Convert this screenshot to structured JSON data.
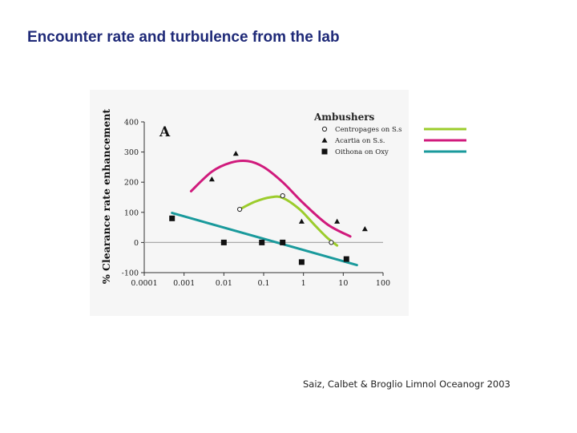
{
  "slide": {
    "title": "Encounter rate and turbulence from the lab",
    "citation": "Saiz, Calbet & Broglio Limnol Oceanogr 2003"
  },
  "chart_data": {
    "type": "scatter",
    "panel_letter": "A",
    "ylabel": "% Clearance rate enhancement",
    "xscale": "log",
    "xlim": [
      0.0001,
      100
    ],
    "ylim": [
      -100,
      400
    ],
    "x_ticks": [
      0.0001,
      0.001,
      0.01,
      0.1,
      1,
      10,
      100
    ],
    "x_tick_labels": [
      "0.0001",
      "0.001",
      "0.01",
      "0.1",
      "1",
      "10",
      "100"
    ],
    "y_ticks": [
      400,
      300,
      200,
      100,
      0,
      -100
    ],
    "y_tick_labels": [
      "400",
      "300",
      "200",
      "100",
      "0",
      "-100"
    ],
    "legend": {
      "title": "Ambushers",
      "placement": "top-right",
      "entries": [
        "Centropages on S.s",
        "Acartia on S.s.",
        "Oithona on Oxy"
      ]
    },
    "series": [
      {
        "name": "Centropages on S.s",
        "marker": "open-circle",
        "points": [
          {
            "x": 0.025,
            "y": 110
          },
          {
            "x": 0.3,
            "y": 155
          },
          {
            "x": 5,
            "y": 0
          }
        ],
        "trend_color": "#9ccc2c",
        "trend": [
          {
            "x": 0.025,
            "y": 110
          },
          {
            "x": 0.06,
            "y": 135
          },
          {
            "x": 0.15,
            "y": 150
          },
          {
            "x": 0.3,
            "y": 148
          },
          {
            "x": 0.8,
            "y": 110
          },
          {
            "x": 2,
            "y": 55
          },
          {
            "x": 4,
            "y": 15
          },
          {
            "x": 7,
            "y": -10
          }
        ]
      },
      {
        "name": "Acartia on S.s.",
        "marker": "triangle",
        "points": [
          {
            "x": 0.005,
            "y": 210
          },
          {
            "x": 0.02,
            "y": 295
          },
          {
            "x": 0.9,
            "y": 70
          },
          {
            "x": 7,
            "y": 70
          },
          {
            "x": 35,
            "y": 45
          }
        ],
        "trend_color": "#d01a7c",
        "trend": [
          {
            "x": 0.0015,
            "y": 170
          },
          {
            "x": 0.005,
            "y": 235
          },
          {
            "x": 0.015,
            "y": 265
          },
          {
            "x": 0.04,
            "y": 270
          },
          {
            "x": 0.1,
            "y": 250
          },
          {
            "x": 0.3,
            "y": 200
          },
          {
            "x": 1,
            "y": 130
          },
          {
            "x": 4,
            "y": 60
          },
          {
            "x": 15,
            "y": 20
          }
        ]
      },
      {
        "name": "Oithona on Oxy",
        "marker": "filled-square",
        "points": [
          {
            "x": 0.0005,
            "y": 80
          },
          {
            "x": 0.01,
            "y": 0
          },
          {
            "x": 0.09,
            "y": 0
          },
          {
            "x": 0.3,
            "y": 0
          },
          {
            "x": 0.9,
            "y": -65
          },
          {
            "x": 12,
            "y": -55
          }
        ],
        "trend_color": "#1a9a9c",
        "trend": [
          {
            "x": 0.0005,
            "y": 98
          },
          {
            "x": 22,
            "y": -75
          }
        ]
      }
    ]
  }
}
